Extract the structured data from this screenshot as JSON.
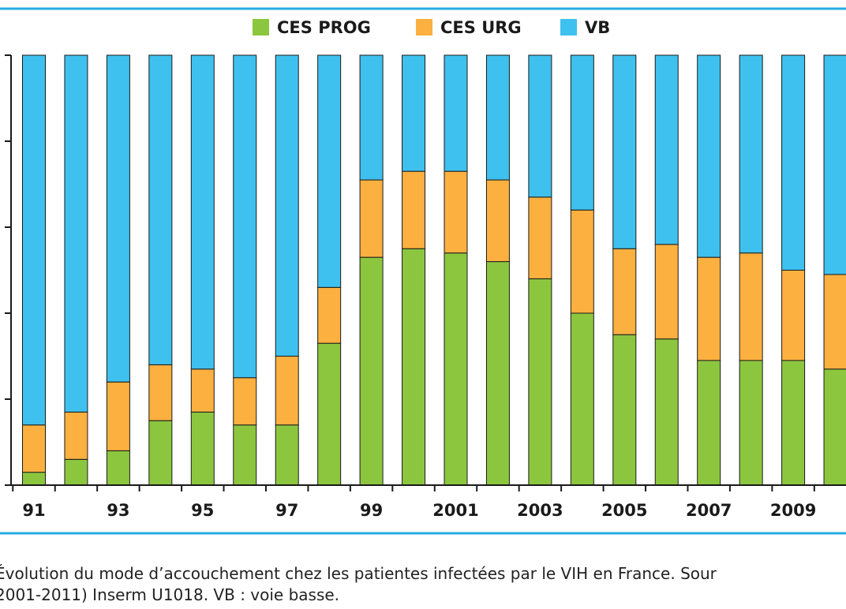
{
  "colors": {
    "ces_prog": "#8cc63f",
    "ces_urg": "#fbb040",
    "vb": "#3fc1ef",
    "rule": "#29abe2",
    "axis": "#1a1a1a"
  },
  "legend": [
    {
      "label": "CES PROG",
      "color_key": "ces_prog"
    },
    {
      "label": "CES URG",
      "color_key": "ces_urg"
    },
    {
      "label": "VB",
      "color_key": "vb"
    }
  ],
  "chart_data": {
    "type": "bar",
    "stacked": true,
    "percent": true,
    "categories": [
      "91",
      "92",
      "93",
      "94",
      "95",
      "96",
      "97",
      "98",
      "99",
      "2000",
      "2001",
      "2002",
      "2003",
      "2004",
      "2005",
      "2006",
      "2007",
      "2008",
      "2009",
      "2010"
    ],
    "x_tick_labels": [
      "91",
      "93",
      "95",
      "97",
      "99",
      "2001",
      "2003",
      "2005",
      "2007",
      "2009"
    ],
    "series": [
      {
        "name": "CES PROG",
        "values": [
          3,
          6,
          8,
          15,
          17,
          14,
          14,
          33,
          53,
          55,
          54,
          52,
          48,
          40,
          35,
          34,
          29,
          29,
          29,
          27
        ]
      },
      {
        "name": "CES URG",
        "values": [
          11,
          11,
          16,
          13,
          10,
          11,
          16,
          13,
          18,
          18,
          19,
          19,
          19,
          24,
          20,
          22,
          24,
          25,
          21,
          22
        ]
      },
      {
        "name": "VB",
        "values": [
          86,
          83,
          76,
          72,
          73,
          75,
          70,
          54,
          29,
          27,
          27,
          29,
          33,
          36,
          45,
          44,
          47,
          46,
          50,
          51
        ]
      }
    ],
    "ylim": [
      0,
      100
    ],
    "grid": false,
    "legend_position": "top",
    "title": "",
    "xlabel": "",
    "ylabel": ""
  },
  "caption": {
    "line1": "Évolution du mode d’accouchement chez les patientes infectées par le VIH en France. Sour",
    "line2": "2001-2011) Inserm U1018. VB : voie basse."
  }
}
